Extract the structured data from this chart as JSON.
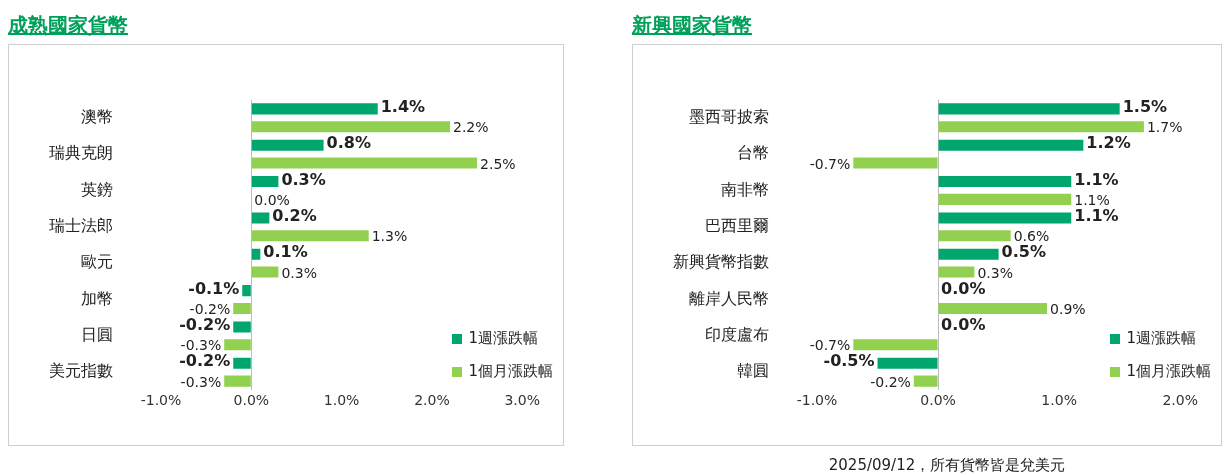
{
  "chart_data": [
    {
      "type": "bar",
      "orientation": "horizontal",
      "title": "成熟國家貨幣",
      "categories": [
        "澳幣",
        "瑞典克朗",
        "英鎊",
        "瑞士法郎",
        "歐元",
        "加幣",
        "日圓",
        "美元指數"
      ],
      "series": [
        {
          "name": "1週漲跌幅",
          "color": "#00a66e",
          "values": [
            1.4,
            0.8,
            0.3,
            0.2,
            0.1,
            -0.1,
            -0.2,
            -0.2
          ],
          "value_labels": [
            "1.4%",
            "0.8%",
            "0.3%",
            "0.2%",
            "0.1%",
            "-0.1%",
            "-0.2%",
            "-0.2%"
          ]
        },
        {
          "name": "1個月漲跌幅",
          "color": "#92d050",
          "values": [
            2.2,
            2.5,
            0.0,
            1.3,
            0.3,
            -0.2,
            -0.3,
            -0.3
          ],
          "value_labels": [
            "2.2%",
            "2.5%",
            "0.0%",
            "1.3%",
            "0.3%",
            "-0.2%",
            "-0.3%",
            "-0.3%"
          ]
        }
      ],
      "xlim": [
        -1,
        3
      ],
      "xticks": [
        {
          "value": -1,
          "label": "-1.0%"
        },
        {
          "value": 0,
          "label": "0.0%"
        },
        {
          "value": 1,
          "label": "1.0%"
        },
        {
          "value": 2,
          "label": "2.0%"
        },
        {
          "value": 3,
          "label": "3.0%"
        }
      ],
      "legend": "bottom right"
    },
    {
      "type": "bar",
      "orientation": "horizontal",
      "title": "新興國家貨幣",
      "categories": [
        "墨西哥披索",
        "台幣",
        "南非幣",
        "巴西里爾",
        "新興貨幣指數",
        "離岸人民幣",
        "印度盧布",
        "韓圓"
      ],
      "series": [
        {
          "name": "1週漲跌幅",
          "color": "#00a66e",
          "values": [
            1.5,
            1.2,
            1.1,
            1.1,
            0.5,
            0.0,
            0.0,
            -0.5
          ],
          "value_labels": [
            "1.5%",
            "1.2%",
            "1.1%",
            "1.1%",
            "0.5%",
            "0.0%",
            "0.0%",
            "-0.5%"
          ]
        },
        {
          "name": "1個月漲跌幅",
          "color": "#92d050",
          "values": [
            1.7,
            -0.7,
            1.1,
            0.6,
            0.3,
            0.9,
            -0.7,
            -0.2
          ],
          "value_labels": [
            "1.7%",
            "-0.7%",
            "1.1%",
            "0.6%",
            "0.3%",
            "0.9%",
            "-0.7%",
            "-0.2%"
          ]
        }
      ],
      "xlim": [
        -1,
        2
      ],
      "xticks": [
        {
          "value": -1,
          "label": "-1.0%"
        },
        {
          "value": 0,
          "label": "0.0%"
        },
        {
          "value": 1,
          "label": "1.0%"
        },
        {
          "value": 2,
          "label": "2.0%"
        }
      ],
      "legend": "bottom right",
      "annotations": [
        "2025/09/12，所有貨幣皆是兌美元"
      ]
    }
  ]
}
